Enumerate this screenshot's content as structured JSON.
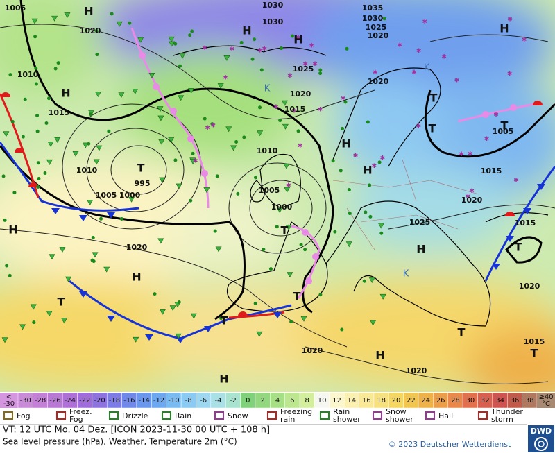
{
  "map": {
    "pressure_labels": [
      1005,
      1020,
      1030,
      1035,
      1030,
      1025,
      1020,
      1030,
      1025,
      1020,
      1020,
      1010,
      1015,
      1015,
      1010,
      1010,
      1005,
      1000,
      995,
      1005,
      1000,
      1020,
      1025,
      1020,
      1015,
      1005,
      1015,
      1020,
      1015,
      1020,
      1020
    ],
    "systems": [
      "H",
      "H",
      "H",
      "H",
      "H",
      "H",
      "H",
      "H",
      "H",
      "H",
      "H",
      "H",
      "T",
      "T",
      "T",
      "T",
      "T",
      "T",
      "T",
      "T",
      "T",
      "T",
      "T"
    ],
    "cold_cores": [
      "K",
      "K",
      "K"
    ]
  },
  "temperature_scale": {
    "low_end": [
      "<",
      "-30"
    ],
    "labels": [
      "-30",
      "-28",
      "-26",
      "-24",
      "-22",
      "-20",
      "-18",
      "-16",
      "-14",
      "-12",
      "-10",
      "-8",
      "-6",
      "-4",
      "-2",
      "0",
      "2",
      "4",
      "6",
      "8",
      "10",
      "12",
      "14",
      "16",
      "18",
      "20",
      "22",
      "24",
      "26",
      "28",
      "30",
      "32",
      "34",
      "36",
      "38"
    ],
    "colors": [
      "#c98ad8",
      "#c47fd6",
      "#b977d6",
      "#ae6fd6",
      "#a06bdb",
      "#8e72e0",
      "#7d7ce6",
      "#6f88ea",
      "#6a97ee",
      "#6ba8f1",
      "#78bbf3",
      "#8bcaf3",
      "#9ed7f0",
      "#a9e0e6",
      "#a8e3d0",
      "#7fd17a",
      "#92d87e",
      "#a7df85",
      "#bce78f",
      "#d3ef9e",
      "#f7f7f2",
      "#fbf6cc",
      "#fbf0b0",
      "#f9e996",
      "#f7e17f",
      "#f5d65f",
      "#f2c64e",
      "#efb249",
      "#ec9d48",
      "#e98849",
      "#e3704c",
      "#d9604e",
      "#cf5350",
      "#c15a4a",
      "#b0785e"
    ],
    "low_color": "#d596e0",
    "high_color": "#a88a72",
    "top_end": [
      "≥40",
      "°C"
    ]
  },
  "legend": [
    [
      "Fog"
    ],
    [
      "Freez.",
      "Fog"
    ],
    [
      "Drizzle"
    ],
    [
      "Rain"
    ],
    [
      "Snow"
    ],
    [
      "Freezing",
      "rain"
    ],
    [
      "Rain",
      "shower"
    ],
    [
      "Snow",
      "shower"
    ],
    [
      "Hail"
    ],
    [
      "Thunder",
      "storm"
    ]
  ],
  "footer": {
    "valid_time": "VT: 12 UTC Mo.  04 Dez. [ICON 2023-11-30  00 UTC + 108 h]",
    "description": "Sea level pressure (hPa), Weather, Temperature 2m (°C)",
    "copyright": "© 2023 Deutscher Wetterdienst",
    "logo": "DWD"
  }
}
